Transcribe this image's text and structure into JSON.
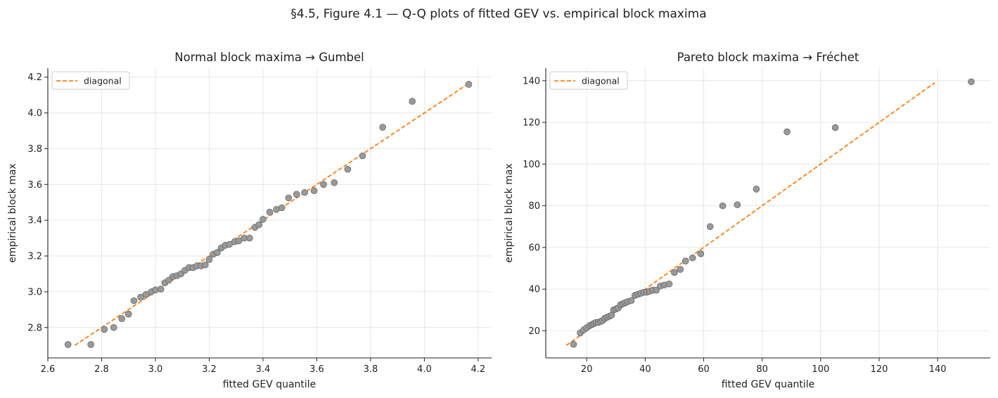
{
  "figure": {
    "suptitle": "§4.5, Figure 4.1 — Q-Q plots of fitted GEV vs. empirical block maxima"
  },
  "chart_data": [
    {
      "type": "scatter",
      "title": "Normal block maxima → Gumbel",
      "xlabel": "fitted GEV quantile",
      "ylabel": "empirical block max",
      "xlim": [
        2.6,
        4.25
      ],
      "ylim": [
        2.63,
        4.25
      ],
      "xticks": [
        "2.6",
        "2.8",
        "3.0",
        "3.2",
        "3.4",
        "3.6",
        "3.8",
        "4.0",
        "4.2"
      ],
      "yticks": [
        "2.8",
        "3.0",
        "3.2",
        "3.4",
        "3.6",
        "3.8",
        "4.0",
        "4.2"
      ],
      "grid": true,
      "legend": {
        "position": "top-left",
        "entries": [
          "diagonal"
        ]
      },
      "diagonal": {
        "name": "diagonal",
        "from": 2.7,
        "to": 4.17,
        "color": "#ff7f0e",
        "style": "dashed"
      },
      "point_color": "#999999",
      "points": [
        [
          2.675,
          2.705
        ],
        [
          2.76,
          2.705
        ],
        [
          2.81,
          2.79
        ],
        [
          2.845,
          2.8
        ],
        [
          2.875,
          2.85
        ],
        [
          2.9,
          2.875
        ],
        [
          2.92,
          2.95
        ],
        [
          2.945,
          2.97
        ],
        [
          2.965,
          2.985
        ],
        [
          2.985,
          3.0
        ],
        [
          3.0,
          3.01
        ],
        [
          3.02,
          3.015
        ],
        [
          3.035,
          3.05
        ],
        [
          3.05,
          3.065
        ],
        [
          3.065,
          3.085
        ],
        [
          3.08,
          3.09
        ],
        [
          3.095,
          3.1
        ],
        [
          3.11,
          3.12
        ],
        [
          3.125,
          3.135
        ],
        [
          3.14,
          3.135
        ],
        [
          3.155,
          3.145
        ],
        [
          3.17,
          3.145
        ],
        [
          3.185,
          3.15
        ],
        [
          3.2,
          3.18
        ],
        [
          3.215,
          3.21
        ],
        [
          3.23,
          3.22
        ],
        [
          3.245,
          3.245
        ],
        [
          3.26,
          3.26
        ],
        [
          3.275,
          3.265
        ],
        [
          3.295,
          3.28
        ],
        [
          3.31,
          3.285
        ],
        [
          3.33,
          3.3
        ],
        [
          3.35,
          3.3
        ],
        [
          3.37,
          3.36
        ],
        [
          3.385,
          3.375
        ],
        [
          3.4,
          3.405
        ],
        [
          3.425,
          3.445
        ],
        [
          3.45,
          3.46
        ],
        [
          3.47,
          3.47
        ],
        [
          3.495,
          3.525
        ],
        [
          3.525,
          3.545
        ],
        [
          3.555,
          3.555
        ],
        [
          3.59,
          3.565
        ],
        [
          3.625,
          3.6
        ],
        [
          3.665,
          3.61
        ],
        [
          3.715,
          3.685
        ],
        [
          3.77,
          3.76
        ],
        [
          3.845,
          3.92
        ],
        [
          3.955,
          4.065
        ],
        [
          4.165,
          4.16
        ]
      ]
    },
    {
      "type": "scatter",
      "title": "Pareto block maxima → Fréchet",
      "xlabel": "fitted GEV quantile",
      "ylabel": "empirical block max",
      "xlim": [
        6.0,
        158.0
      ],
      "ylim": [
        7.0,
        146.0
      ],
      "xticks": [
        "20",
        "40",
        "60",
        "80",
        "100",
        "120",
        "140"
      ],
      "yticks": [
        "20",
        "40",
        "60",
        "80",
        "100",
        "120",
        "140"
      ],
      "grid": true,
      "legend": {
        "position": "top-left",
        "entries": [
          "diagonal"
        ]
      },
      "diagonal": {
        "name": "diagonal",
        "from": 13.0,
        "to": 139.0,
        "color": "#ff7f0e",
        "style": "dashed"
      },
      "point_color": "#999999",
      "points": [
        [
          15.5,
          13.5
        ],
        [
          17.8,
          19.0
        ],
        [
          19.0,
          20.5
        ],
        [
          20.0,
          21.5
        ],
        [
          21.0,
          22.5
        ],
        [
          21.8,
          23.0
        ],
        [
          22.5,
          23.5
        ],
        [
          23.2,
          24.0
        ],
        [
          24.0,
          24.0
        ],
        [
          24.8,
          24.5
        ],
        [
          25.5,
          25.0
        ],
        [
          26.2,
          26.0
        ],
        [
          27.0,
          26.5
        ],
        [
          27.8,
          27.0
        ],
        [
          28.5,
          27.5
        ],
        [
          29.2,
          30.0
        ],
        [
          30.0,
          30.5
        ],
        [
          30.8,
          31.0
        ],
        [
          31.6,
          32.5
        ],
        [
          32.4,
          33.0
        ],
        [
          33.2,
          33.5
        ],
        [
          34.0,
          34.0
        ],
        [
          35.2,
          34.5
        ],
        [
          36.5,
          37.0
        ],
        [
          37.5,
          37.5
        ],
        [
          38.5,
          38.0
        ],
        [
          39.5,
          38.5
        ],
        [
          40.5,
          38.5
        ],
        [
          41.5,
          39.0
        ],
        [
          42.6,
          39.5
        ],
        [
          43.8,
          39.5
        ],
        [
          45.2,
          41.5
        ],
        [
          46.6,
          42.0
        ],
        [
          48.2,
          42.5
        ],
        [
          50.0,
          48.0
        ],
        [
          52.0,
          49.5
        ],
        [
          53.8,
          53.5
        ],
        [
          56.2,
          55.0
        ],
        [
          59.0,
          57.0
        ],
        [
          62.2,
          70.0
        ],
        [
          66.5,
          80.0
        ],
        [
          71.5,
          80.5
        ],
        [
          78.0,
          88.0
        ],
        [
          88.5,
          115.5
        ],
        [
          105.0,
          117.5
        ],
        [
          151.5,
          139.5
        ]
      ]
    }
  ]
}
